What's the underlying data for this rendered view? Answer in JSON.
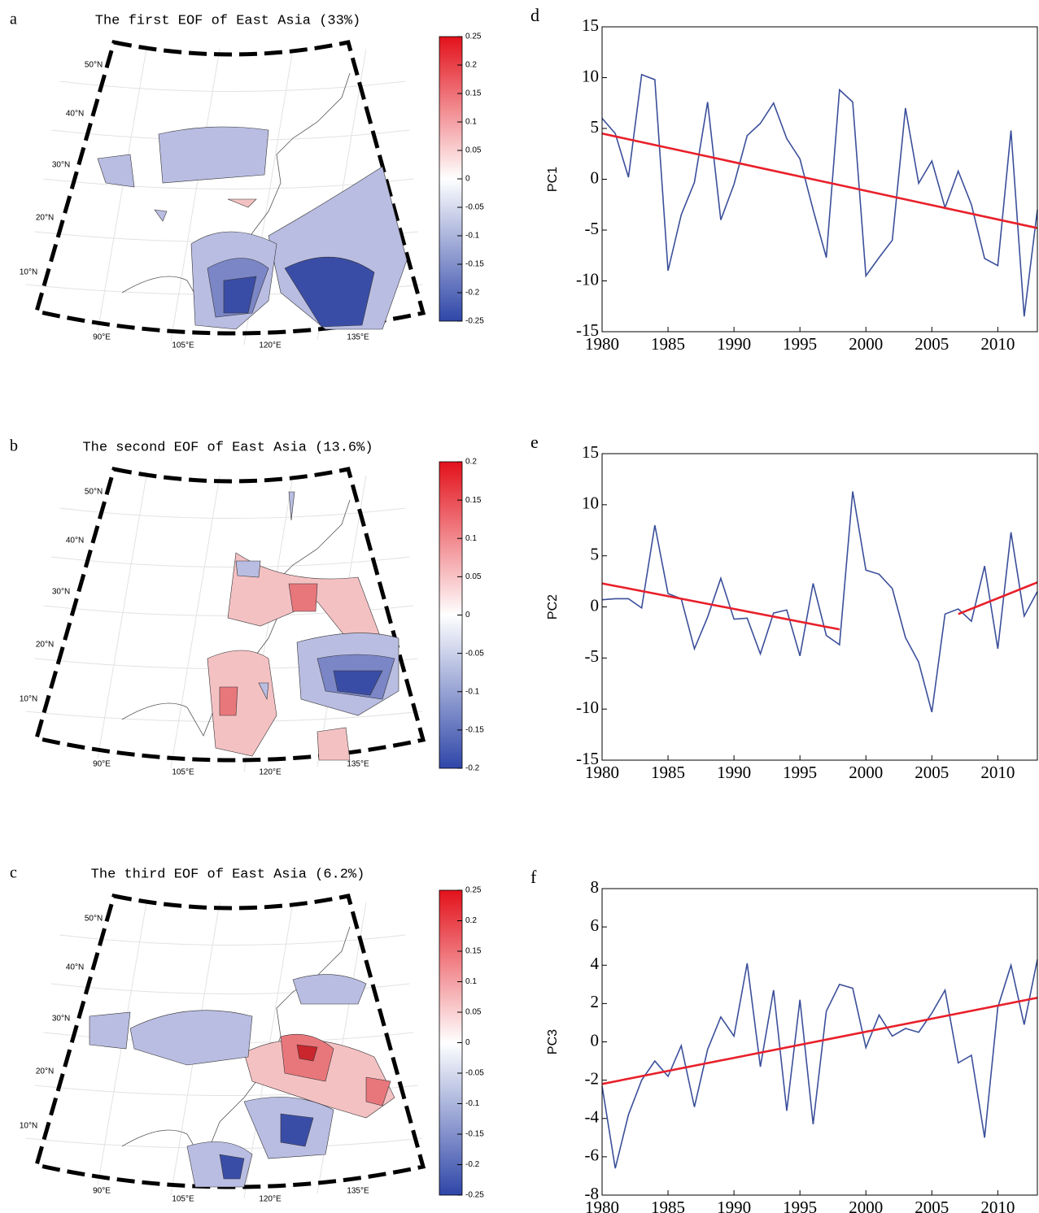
{
  "chart_data": [
    {
      "type": "map",
      "label": "a",
      "title": "The first EOF of  East Asia (33%)",
      "colorbar_lim": [
        -0.25,
        0.25
      ],
      "colorbar_ticks": [
        0.25,
        0.2,
        0.15,
        0.1,
        0.05,
        0,
        -0.05,
        -0.1,
        -0.15,
        -0.2,
        -0.25
      ],
      "lat_labels": [
        "50°N",
        "40°N",
        "30°N",
        "20°N",
        "10°N"
      ],
      "lon_labels": [
        "90°E",
        "105°E",
        "120°E",
        "135°E"
      ]
    },
    {
      "type": "map",
      "label": "b",
      "title": "The second EOF of  East Asia (13.6%)",
      "colorbar_lim": [
        -0.2,
        0.2
      ],
      "colorbar_ticks": [
        0.2,
        0.15,
        0.1,
        0.05,
        0,
        -0.05,
        -0.1,
        -0.15,
        -0.2
      ],
      "lat_labels": [
        "50°N",
        "40°N",
        "30°N",
        "20°N",
        "10°N"
      ],
      "lon_labels": [
        "90°E",
        "105°E",
        "120°E",
        "135°E"
      ]
    },
    {
      "type": "map",
      "label": "c",
      "title": "The third EOF of  East Asia (6.2%)",
      "colorbar_lim": [
        -0.25,
        0.25
      ],
      "colorbar_ticks": [
        0.25,
        0.2,
        0.15,
        0.1,
        0.05,
        0,
        -0.05,
        -0.1,
        -0.15,
        -0.2,
        -0.25
      ],
      "lat_labels": [
        "50°N",
        "40°N",
        "30°N",
        "20°N",
        "10°N"
      ],
      "lon_labels": [
        "90°E",
        "105°E",
        "120°E",
        "135°E"
      ]
    },
    {
      "type": "line",
      "label": "d",
      "y_label": "PC1",
      "x": [
        1980,
        1981,
        1982,
        1983,
        1984,
        1985,
        1986,
        1987,
        1988,
        1989,
        1990,
        1991,
        1992,
        1993,
        1994,
        1995,
        1996,
        1997,
        1998,
        1999,
        2000,
        2001,
        2002,
        2003,
        2004,
        2005,
        2006,
        2007,
        2008,
        2009,
        2010,
        2011,
        2012,
        2013
      ],
      "xlim": [
        1980,
        2013
      ],
      "xticks": [
        1980,
        1985,
        1990,
        1995,
        2000,
        2005,
        2010
      ],
      "ylim": [
        -15,
        15
      ],
      "yticks": [
        -15,
        -10,
        -5,
        0,
        5,
        10,
        15
      ],
      "series": [
        {
          "color": "#3b4f9a",
          "values": [
            6,
            4.5,
            0.2,
            10.3,
            9.8,
            -9,
            -3.5,
            -0.3,
            7.6,
            -4,
            -0.5,
            4.3,
            5.5,
            7.5,
            4,
            2,
            -3,
            -7.7,
            8.8,
            7.6,
            -9.5,
            -7.7,
            -6,
            7,
            -0.4,
            1.8,
            -2.8,
            0.8,
            -2.5,
            -7.8,
            -8.5,
            4.8,
            -13.5,
            -3
          ]
        },
        {
          "color": "#e8202a",
          "x": [
            1980,
            2013
          ],
          "values": [
            4.5,
            -4.8
          ]
        }
      ]
    },
    {
      "type": "line",
      "label": "e",
      "y_label": "PC2",
      "x": [
        1980,
        1981,
        1982,
        1983,
        1984,
        1985,
        1986,
        1987,
        1988,
        1989,
        1990,
        1991,
        1992,
        1993,
        1994,
        1995,
        1996,
        1997,
        1998,
        1999,
        2000,
        2001,
        2002,
        2003,
        2004,
        2005,
        2006,
        2007,
        2008,
        2009,
        2010,
        2011,
        2012,
        2013
      ],
      "xlim": [
        1980,
        2013
      ],
      "xticks": [
        1980,
        1985,
        1990,
        1995,
        2000,
        2005,
        2010
      ],
      "ylim": [
        -15,
        15
      ],
      "yticks": [
        -15,
        -10,
        -5,
        0,
        5,
        10,
        15
      ],
      "series": [
        {
          "color": "#3b4f9a",
          "values": [
            0.7,
            0.8,
            0.8,
            -0.1,
            8,
            1.3,
            0.8,
            -4.1,
            -1,
            2.8,
            -1.2,
            -1.1,
            -4.6,
            -0.6,
            -0.3,
            -4.8,
            2.3,
            -2.8,
            -3.7,
            11.3,
            3.6,
            3.2,
            1.8,
            -3,
            -5.4,
            -10.3,
            -0.7,
            -0.2,
            -1.4,
            4,
            -4.1,
            7.3,
            -0.9,
            1.5
          ]
        },
        {
          "color": "#e8202a",
          "x": [
            1980,
            1998
          ],
          "values": [
            2.3,
            -2.2
          ]
        },
        {
          "color": "#e8202a",
          "x": [
            2007,
            2013
          ],
          "values": [
            -0.7,
            2.4
          ]
        }
      ]
    },
    {
      "type": "line",
      "label": "f",
      "y_label": "PC3",
      "x": [
        1980,
        1981,
        1982,
        1983,
        1984,
        1985,
        1986,
        1987,
        1988,
        1989,
        1990,
        1991,
        1992,
        1993,
        1994,
        1995,
        1996,
        1997,
        1998,
        1999,
        2000,
        2001,
        2002,
        2003,
        2004,
        2005,
        2006,
        2007,
        2008,
        2009,
        2010,
        2011,
        2012,
        2013
      ],
      "xlim": [
        1980,
        2013
      ],
      "xticks": [
        1980,
        1985,
        1990,
        1995,
        2000,
        2005,
        2010
      ],
      "ylim": [
        -8,
        8
      ],
      "yticks": [
        -8,
        -6,
        -4,
        -2,
        0,
        2,
        4,
        6,
        8
      ],
      "series": [
        {
          "color": "#3b4f9a",
          "values": [
            -2.3,
            -6.6,
            -3.8,
            -2,
            -1,
            -1.8,
            -0.2,
            -3.4,
            -0.4,
            1.3,
            0.3,
            4.1,
            -1.3,
            2.7,
            -3.6,
            2.2,
            -4.3,
            1.6,
            3,
            2.8,
            -0.3,
            1.4,
            0.3,
            0.7,
            0.5,
            1.5,
            2.7,
            -1.1,
            -0.7,
            -5,
            1.8,
            4,
            0.9,
            4.3
          ]
        },
        {
          "color": "#e8202a",
          "x": [
            1980,
            2013
          ],
          "values": [
            -2.2,
            2.3
          ]
        }
      ]
    }
  ]
}
